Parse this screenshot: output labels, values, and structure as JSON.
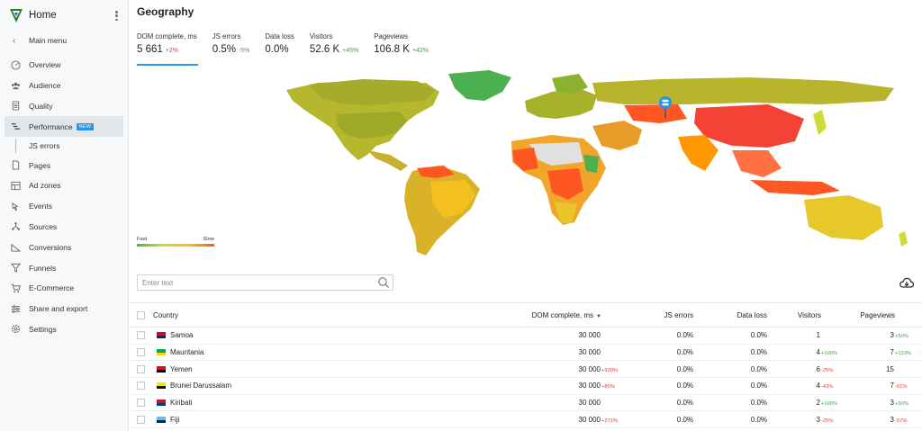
{
  "sidebar": {
    "home": "Home",
    "main_menu": "Main menu",
    "items": [
      {
        "label": "Overview",
        "icon": "overview-icon"
      },
      {
        "label": "Audience",
        "icon": "audience-icon"
      },
      {
        "label": "Quality",
        "icon": "quality-icon"
      },
      {
        "label": "Performance",
        "icon": "performance-icon",
        "badge": "NEW",
        "active": true
      },
      {
        "label": "Pages",
        "icon": "pages-icon"
      },
      {
        "label": "Ad zones",
        "icon": "ad-zones-icon"
      },
      {
        "label": "Events",
        "icon": "events-icon"
      },
      {
        "label": "Sources",
        "icon": "sources-icon"
      },
      {
        "label": "Conversions",
        "icon": "conversions-icon"
      },
      {
        "label": "Funnels",
        "icon": "funnels-icon"
      },
      {
        "label": "E-Commerce",
        "icon": "ecommerce-icon"
      },
      {
        "label": "Share and export",
        "icon": "share-icon"
      },
      {
        "label": "Settings",
        "icon": "settings-icon"
      }
    ],
    "sub_item": "JS errors"
  },
  "page": {
    "title": "Geography"
  },
  "metrics": [
    {
      "label": "DOM complete, ms",
      "value": "5 661",
      "delta": "+2%",
      "trend": "down"
    },
    {
      "label": "JS errors",
      "value": "0.5%",
      "delta": "-5%",
      "trend": "up"
    },
    {
      "label": "Data loss",
      "value": "0.0%",
      "delta": "",
      "trend": ""
    },
    {
      "label": "Visitors",
      "value": "52.6 K",
      "delta": "+45%",
      "trend": "up"
    },
    {
      "label": "Pageviews",
      "value": "106.8 K",
      "delta": "+42%",
      "trend": "up"
    }
  ],
  "legend": {
    "fast": "Fast",
    "slow": "Slow",
    "colors": [
      "#4caf50",
      "#cddc39",
      "#ffc107",
      "#ff5722"
    ]
  },
  "search": {
    "placeholder": "Enter text"
  },
  "table": {
    "headers": {
      "country": "Country",
      "dom": "DOM complete, ms",
      "js": "JS errors",
      "dl": "Data loss",
      "visitors": "Visitors",
      "pageviews": "Pageviews"
    },
    "rows": [
      {
        "country": "Samoa",
        "dom": "30 000",
        "dom_d": "",
        "js": "0.0%",
        "dl": "0.0%",
        "vis": "1",
        "vis_d": "",
        "pv": "3",
        "pv_d": "+50%",
        "flag": [
          "#c8102e",
          "#002b7f"
        ]
      },
      {
        "country": "Mauritania",
        "dom": "30 000",
        "dom_d": "",
        "js": "0.0%",
        "dl": "0.0%",
        "vis": "4",
        "vis_d": "+100%",
        "pv": "7",
        "pv_d": "+133%",
        "flag": [
          "#00a95c",
          "#ffd700"
        ]
      },
      {
        "country": "Yemen",
        "dom": "30 000",
        "dom_d": "+920%",
        "js": "0.0%",
        "dl": "0.0%",
        "vis": "6",
        "vis_d": "-25%",
        "pv": "15",
        "pv_d": "",
        "flag": [
          "#ce1126",
          "#000000"
        ]
      },
      {
        "country": "Brunei Darussalam",
        "dom": "30 000",
        "dom_d": "+80%",
        "js": "0.0%",
        "dl": "0.0%",
        "vis": "4",
        "vis_d": "-43%",
        "pv": "7",
        "pv_d": "-61%",
        "flag": [
          "#f7e017",
          "#111111"
        ]
      },
      {
        "country": "Kiribati",
        "dom": "30 000",
        "dom_d": "",
        "js": "0.0%",
        "dl": "0.0%",
        "vis": "2",
        "vis_d": "+100%",
        "pv": "3",
        "pv_d": "+50%",
        "flag": [
          "#ce1126",
          "#003f87"
        ]
      },
      {
        "country": "Fiji",
        "dom": "30 000",
        "dom_d": "+271%",
        "js": "0.0%",
        "dl": "0.0%",
        "vis": "3",
        "vis_d": "-25%",
        "pv": "3",
        "pv_d": "-57%",
        "flag": [
          "#68bfe5",
          "#002868"
        ]
      }
    ]
  }
}
